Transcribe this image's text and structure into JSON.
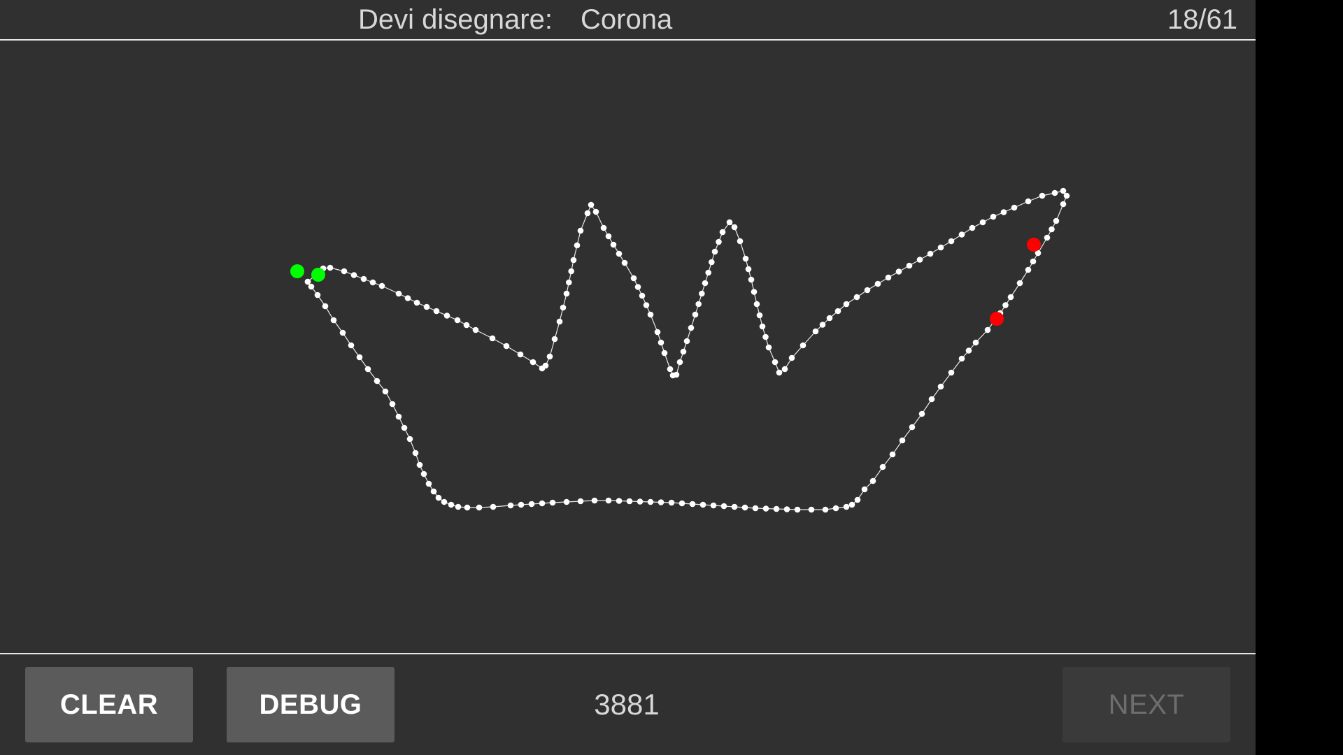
{
  "header": {
    "prompt_label": "Devi disegnare:",
    "prompt_word": "Corona",
    "progress": "18/61"
  },
  "footer": {
    "clear_label": "CLEAR",
    "debug_label": "DEBUG",
    "counter": "3881",
    "next_label": "NEXT",
    "next_enabled": false
  },
  "colors": {
    "background": "#303030",
    "stroke": "#ffffff",
    "start_marker": "#00ff00",
    "end_marker": "#ff0000",
    "button": "#5b5b5c",
    "button_disabled": "#3a3a3b"
  }
}
